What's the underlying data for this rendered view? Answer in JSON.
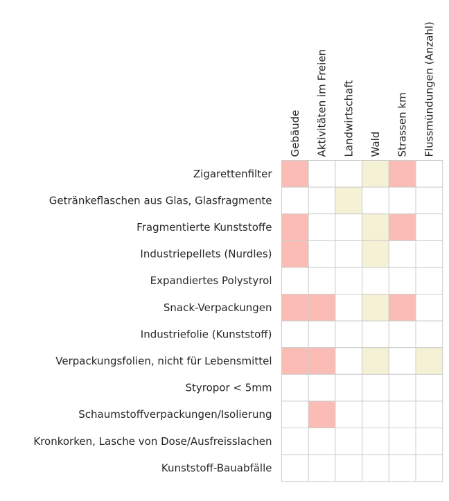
{
  "chart_data": {
    "type": "heatmap",
    "title": "",
    "columns": [
      "Gebäude",
      "Aktivitäten im Freien",
      "Landwirtschaft",
      "Wald",
      "Strassen km",
      "Flussmündungen (Anzahl)"
    ],
    "rows": [
      "Zigarettenfilter",
      "Getränkeflaschen aus Glas, Glasfragmente",
      "Fragmentierte Kunststoffe",
      "Industriepellets (Nurdles)",
      "Expandiertes Polystyrol",
      "Snack-Verpackungen",
      "Industriefolie (Kunststoff)",
      "Verpackungsfolien, nicht für Lebensmittel",
      "Styropor < 5mm",
      "Schaumstoffverpackungen/Isolierung",
      "Kronkorken, Lasche von Dose/Ausfreisslachen",
      "Kunststoff-Bauabfälle"
    ],
    "values": [
      [
        1,
        0,
        0,
        -1,
        1,
        0
      ],
      [
        0,
        0,
        -1,
        0,
        0,
        0
      ],
      [
        1,
        0,
        0,
        -1,
        1,
        0
      ],
      [
        1,
        0,
        0,
        -1,
        0,
        0
      ],
      [
        0,
        0,
        0,
        0,
        0,
        0
      ],
      [
        1,
        1,
        0,
        -1,
        1,
        0
      ],
      [
        0,
        0,
        0,
        0,
        0,
        0
      ],
      [
        1,
        1,
        0,
        -1,
        0,
        -1
      ],
      [
        0,
        0,
        0,
        0,
        0,
        0
      ],
      [
        0,
        1,
        0,
        0,
        0,
        0
      ],
      [
        0,
        0,
        0,
        0,
        0,
        0
      ],
      [
        0,
        0,
        0,
        0,
        0,
        0
      ]
    ],
    "color_map": {
      "1": "#fbbcb6",
      "0": "#ffffff",
      "-1": "#f5f1d5"
    },
    "grid_color": "#cccccc",
    "legend": "none"
  }
}
